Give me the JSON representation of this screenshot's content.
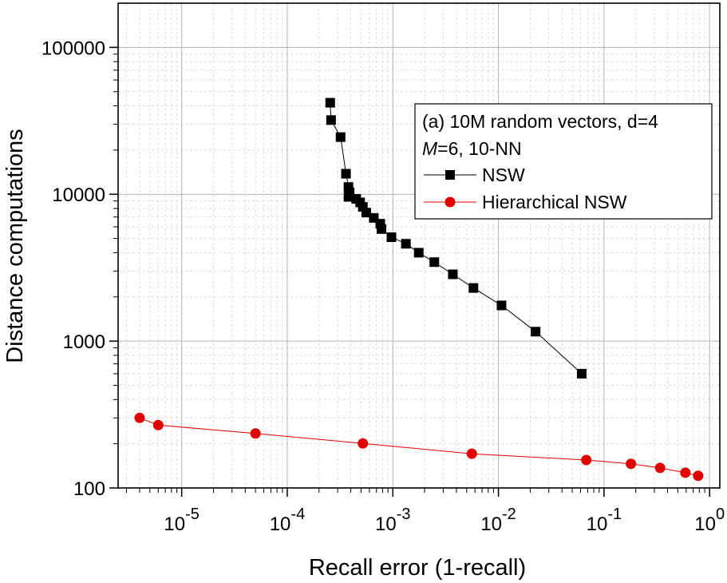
{
  "chart_data": {
    "type": "line",
    "xlabel": "Recall error (1-recall)",
    "ylabel": "Distance computations",
    "x_scale": "log",
    "y_scale": "log",
    "xlim": [
      2.5e-06,
      1.25
    ],
    "ylim": [
      100,
      200000
    ],
    "grid": true,
    "legend_position": "top-right",
    "y_ticks": [
      100,
      1000,
      10000,
      100000
    ],
    "y_tick_labels": [
      "100",
      "1000",
      "10000",
      "100000"
    ],
    "x_ticks": [
      1e-05,
      0.0001,
      0.001,
      0.01,
      0.1,
      1
    ],
    "x_tick_labels": [
      {
        "base": "10",
        "exp": "-5"
      },
      {
        "base": "10",
        "exp": "-4"
      },
      {
        "base": "10",
        "exp": "-3"
      },
      {
        "base": "10",
        "exp": "-2"
      },
      {
        "base": "10",
        "exp": "-1"
      },
      {
        "base": "10",
        "exp": "0"
      }
    ],
    "legend": {
      "title_line1": "(a) 10M random vectors, d=4",
      "title_line2_italic": "M",
      "title_line2_rest": "=6, 10-NN"
    },
    "series": [
      {
        "name": "NSW",
        "color": "#000000",
        "marker": "square",
        "points": [
          [
            0.000255,
            42000
          ],
          [
            0.00026,
            32000
          ],
          [
            0.00032,
            24500
          ],
          [
            0.00036,
            13800
          ],
          [
            0.00038,
            11200
          ],
          [
            0.00039,
            10300
          ],
          [
            0.00038,
            9600
          ],
          [
            0.00045,
            9300
          ],
          [
            0.00049,
            8800
          ],
          [
            0.00052,
            8200
          ],
          [
            0.00056,
            7500
          ],
          [
            0.00066,
            6900
          ],
          [
            0.00076,
            6300
          ],
          [
            0.00078,
            5800
          ],
          [
            0.00097,
            5100
          ],
          [
            0.00133,
            4600
          ],
          [
            0.00176,
            4000
          ],
          [
            0.00247,
            3450
          ],
          [
            0.0037,
            2850
          ],
          [
            0.0058,
            2300
          ],
          [
            0.0107,
            1750
          ],
          [
            0.0225,
            1160
          ],
          [
            0.0615,
            600
          ]
        ]
      },
      {
        "name": "Hierarchical NSW",
        "color": "#e00000",
        "marker": "circle",
        "points": [
          [
            4e-06,
            300
          ],
          [
            6e-06,
            268
          ],
          [
            5e-05,
            235
          ],
          [
            0.00052,
            201
          ],
          [
            0.0056,
            171
          ],
          [
            0.068,
            155
          ],
          [
            0.18,
            146
          ],
          [
            0.34,
            137
          ],
          [
            0.59,
            127
          ],
          [
            0.78,
            121
          ]
        ]
      }
    ]
  }
}
